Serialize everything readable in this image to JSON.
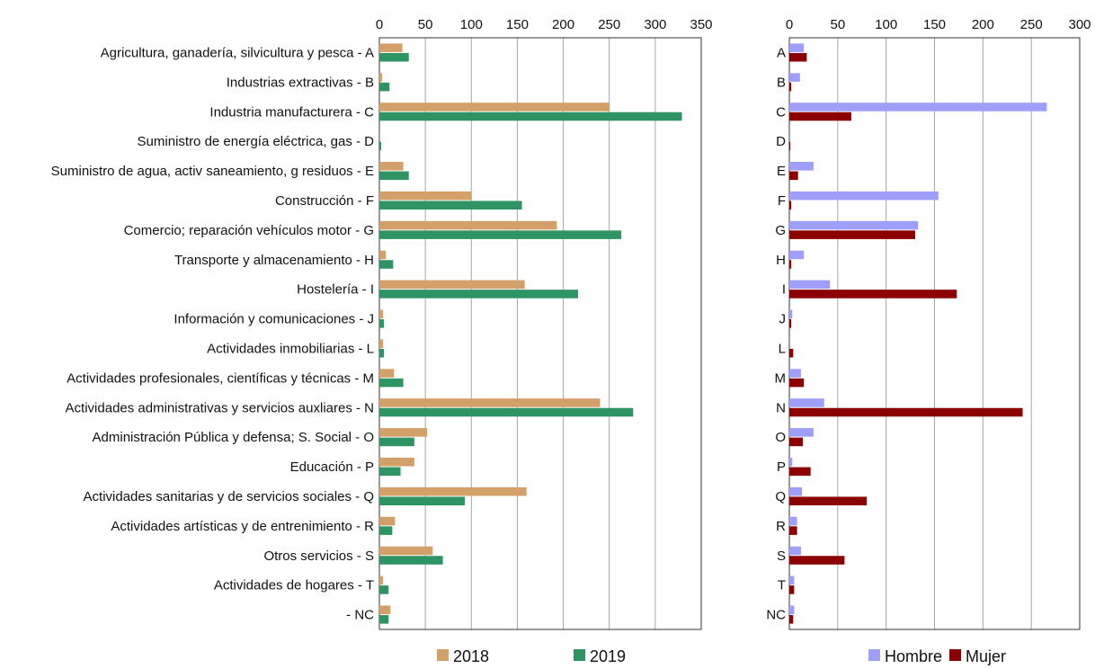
{
  "chart_data": [
    {
      "type": "bar",
      "orientation": "horizontal",
      "xlim": [
        0,
        350
      ],
      "ticks": [
        "0",
        "50",
        "100",
        "150",
        "200",
        "250",
        "300",
        "350"
      ],
      "tick_values": [
        0,
        50,
        100,
        150,
        200,
        250,
        300,
        350
      ],
      "grid": true,
      "legend_position": "bottom",
      "categories": [
        "Agricultura, ganadería, silvicultura y pesca -  A",
        "Industrias extractivas -  B",
        "Industria manufacturera -  C",
        "Suministro de energía eléctrica, gas -  D",
        "Suministro de agua, activ saneamiento, g residuos -  E",
        "Construcción -  F",
        "Comercio; reparación vehículos motor -  G",
        "Transporte y almacenamiento -  H",
        "Hostelería -  I",
        "Información y comunicaciones -  J",
        "Actividades inmobiliarias -  L",
        "Actividades profesionales, científicas y técnicas -  M",
        "Actividades administrativas y servicios auxliares -  N",
        "Administración Pública y defensa; S. Social -  O",
        "Educación -  P",
        "Actividades sanitarias y de servicios sociales -  Q",
        "Actividades artísticas y de entrenimiento -  R",
        "Otros servicios -  S",
        "Actividades de hogares  -  T",
        "-  NC"
      ],
      "series": [
        {
          "name": "2018",
          "color": "#d4a06a",
          "values": [
            25,
            3,
            250,
            1,
            26,
            100,
            193,
            7,
            158,
            4,
            4,
            16,
            240,
            52,
            38,
            160,
            17,
            58,
            4,
            12
          ]
        },
        {
          "name": "2019",
          "color": "#2e9464",
          "values": [
            32,
            11,
            329,
            2,
            32,
            155,
            263,
            15,
            216,
            5,
            5,
            26,
            276,
            38,
            23,
            93,
            14,
            69,
            10,
            10
          ]
        }
      ]
    },
    {
      "type": "bar",
      "orientation": "horizontal",
      "xlim": [
        0,
        300
      ],
      "ticks": [
        "0",
        "50",
        "100",
        "150",
        "200",
        "250",
        "300"
      ],
      "tick_values": [
        0,
        50,
        100,
        150,
        200,
        250,
        300
      ],
      "grid": true,
      "legend_position": "bottom",
      "categories": [
        "A",
        "B",
        "C",
        "D",
        "E",
        "F",
        "G",
        "H",
        "I",
        "J",
        "L",
        "M",
        "N",
        "O",
        "P",
        "Q",
        "R",
        "S",
        "T",
        "NC"
      ],
      "series": [
        {
          "name": "Hombre",
          "color": "#9f9ffb",
          "values": [
            15,
            11,
            266,
            1,
            25,
            154,
            133,
            15,
            42,
            3,
            1,
            12,
            36,
            25,
            3,
            13,
            8,
            12,
            5,
            5
          ]
        },
        {
          "name": "Mujer",
          "color": "#8b0000",
          "values": [
            18,
            2,
            64,
            1,
            9,
            2,
            130,
            2,
            173,
            2,
            4,
            15,
            241,
            14,
            22,
            80,
            8,
            57,
            5,
            4
          ]
        }
      ]
    }
  ]
}
